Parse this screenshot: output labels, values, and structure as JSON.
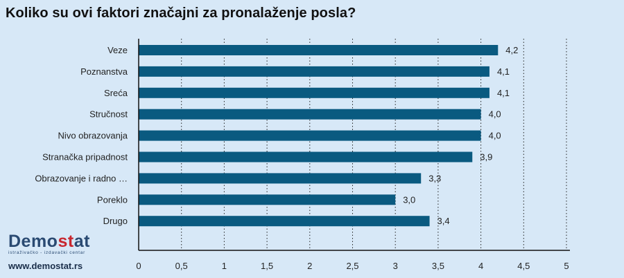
{
  "title": "Koliko su ovi faktori značajni za pronalaženje posla?",
  "brand": {
    "name_part1": "Demo",
    "name_accent": "st",
    "name_part2": "at",
    "subtitle": "istraživačko - izdavački centar",
    "url": "www.demostat.rs",
    "colors": {
      "primary": "#2a4a72",
      "accent": "#c8272f"
    }
  },
  "chart_data": {
    "type": "bar",
    "orientation": "horizontal",
    "categories": [
      "Veze",
      "Poznanstva",
      "Sreća",
      "Stručnost",
      "Nivo obrazovanja",
      "Stranačka pripadnost",
      "Obrazovanje i radno …",
      "Poreklo",
      "Drugo"
    ],
    "values": [
      4.2,
      4.1,
      4.1,
      4.0,
      4.0,
      3.9,
      3.3,
      3.0,
      3.4
    ],
    "value_labels": [
      "4,2",
      "4,1",
      "4,1",
      "4,0",
      "4,0",
      "3,9",
      "3,3",
      "3,0",
      "3,4"
    ],
    "xlim": [
      0,
      5
    ],
    "x_ticks": [
      0,
      0.5,
      1,
      1.5,
      2,
      2.5,
      3,
      3.5,
      4,
      4.5,
      5
    ],
    "x_tick_labels": [
      "0",
      "0,5",
      "1",
      "1,5",
      "2",
      "2,5",
      "3",
      "3,5",
      "4",
      "4,5",
      "5"
    ],
    "grid": "vertical-dotted",
    "bar_color": "#0a5a80",
    "xlabel": "",
    "ylabel": ""
  }
}
